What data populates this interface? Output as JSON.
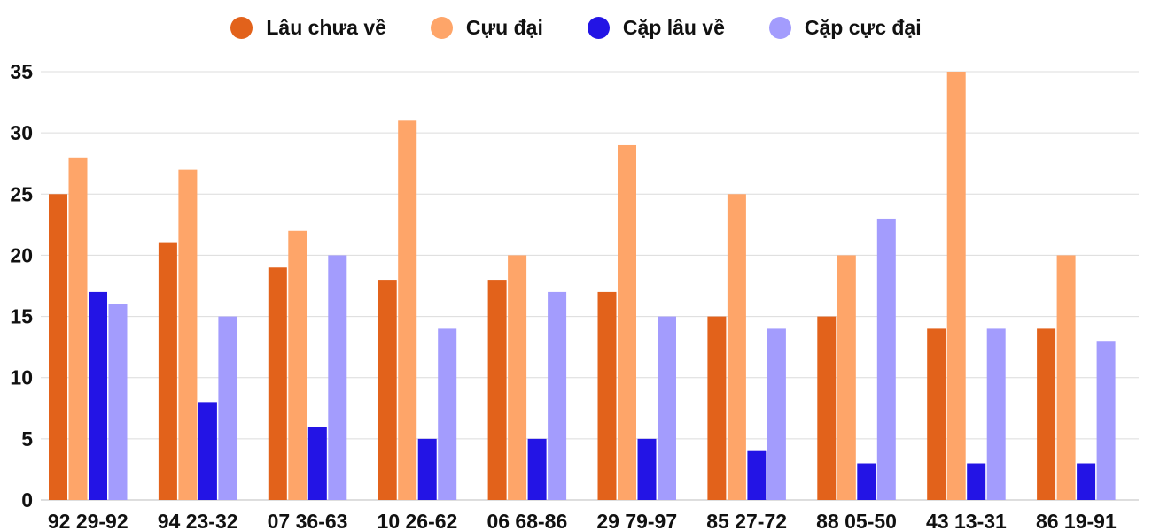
{
  "chart_data": {
    "type": "bar",
    "title": "",
    "xlabel": "",
    "ylabel": "",
    "ylim": [
      0,
      35
    ],
    "yticks": [
      0,
      5,
      10,
      15,
      20,
      25,
      30,
      35
    ],
    "grid": true,
    "legend_position": "top-center",
    "categories": [
      "92 29-92",
      "94 23-32",
      "07 36-63",
      "10 26-62",
      "06 68-86",
      "29 79-97",
      "85 27-72",
      "88 05-50",
      "43 13-31",
      "86 19-91"
    ],
    "series": [
      {
        "name": "Lâu chưa về",
        "color": "#e2621b",
        "values": [
          25,
          21,
          19,
          18,
          18,
          17,
          15,
          15,
          14,
          14
        ]
      },
      {
        "name": "Cựu đại",
        "color": "#fea569",
        "values": [
          28,
          27,
          22,
          31,
          20,
          29,
          25,
          20,
          35,
          20
        ]
      },
      {
        "name": "Cặp lâu về",
        "color": "#2314e5",
        "values": [
          17,
          8,
          6,
          5,
          5,
          5,
          4,
          3,
          3,
          3
        ]
      },
      {
        "name": "Cặp cực đại",
        "color": "#a39cfd",
        "values": [
          16,
          15,
          20,
          14,
          17,
          15,
          14,
          23,
          14,
          13
        ]
      }
    ]
  }
}
